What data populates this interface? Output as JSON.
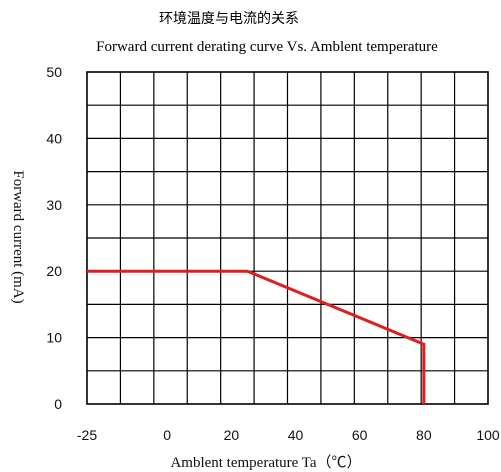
{
  "chart_data": {
    "type": "line",
    "title": "环境温度与电流的关系",
    "subtitle": "Forward current derating curve Vs. Amblent temperature",
    "xlabel": "Amblent temperature Ta（℃）",
    "ylabel": "Forward current (mA)",
    "xlim": [
      -25,
      100
    ],
    "ylim": [
      0,
      50
    ],
    "x_ticks": [
      "-25",
      "0",
      "20",
      "40",
      "60",
      "80",
      "100"
    ],
    "y_ticks": [
      "0",
      "10",
      "20",
      "30",
      "40",
      "50"
    ],
    "grid": true,
    "series": [
      {
        "color": "#e01e1e",
        "points": [
          {
            "x": -25,
            "y": 20
          },
          {
            "x": 25,
            "y": 20
          },
          {
            "x": 80,
            "y": 9
          },
          {
            "x": 80,
            "y": 0
          }
        ]
      }
    ]
  }
}
